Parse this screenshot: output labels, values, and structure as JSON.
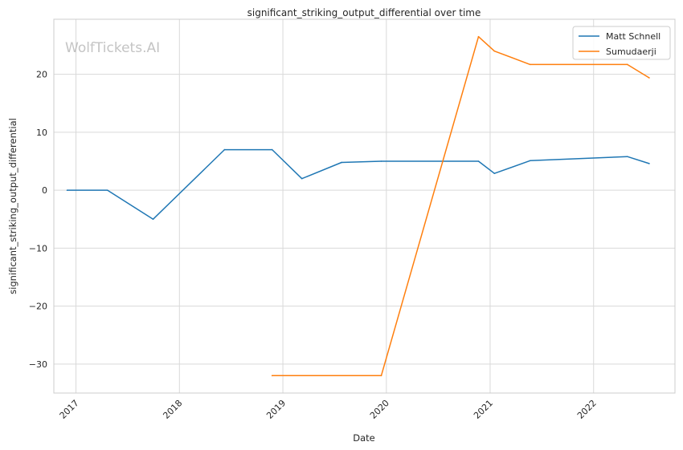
{
  "chart_data": {
    "type": "line",
    "title": "significant_striking_output_differential over time",
    "xlabel": "Date",
    "ylabel": "significant_striking_output_differential",
    "watermark": "WolfTickets.AI",
    "xlim": [
      "2016-10-15",
      "2022-10-15"
    ],
    "ylim": [
      -35,
      29.5
    ],
    "x_ticks": [
      "2017-01-01",
      "2018-01-01",
      "2019-01-01",
      "2020-01-01",
      "2021-01-01",
      "2022-01-01"
    ],
    "x_tick_labels": [
      "2017",
      "2018",
      "2019",
      "2020",
      "2021",
      "2022"
    ],
    "y_ticks": [
      -30,
      -20,
      -10,
      0,
      10,
      20
    ],
    "y_tick_labels": [
      "−30",
      "−20",
      "−10",
      "0",
      "10",
      "20"
    ],
    "grid": true,
    "legend_position": "top-right",
    "series": [
      {
        "name": "Matt Schnell",
        "color": "#1f77b4",
        "x": [
          "2016-12-01",
          "2017-04-22",
          "2017-09-30",
          "2018-06-09",
          "2018-11-24",
          "2019-03-09",
          "2019-07-27",
          "2019-12-14",
          "2020-11-21",
          "2021-01-16",
          "2021-05-22",
          "2022-04-30",
          "2022-07-16"
        ],
        "y": [
          0,
          0,
          -5,
          7,
          7,
          2,
          4.8,
          5,
          5,
          2.9,
          5.1,
          5.8,
          4.6
        ]
      },
      {
        "name": "Sumudaerji",
        "color": "#ff7f0e",
        "x": [
          "2018-11-24",
          "2019-12-14",
          "2020-11-21",
          "2021-01-16",
          "2021-05-22",
          "2022-04-30",
          "2022-07-16"
        ],
        "y": [
          -32,
          -32,
          26.5,
          24,
          21.7,
          21.7,
          19.4
        ]
      }
    ]
  }
}
